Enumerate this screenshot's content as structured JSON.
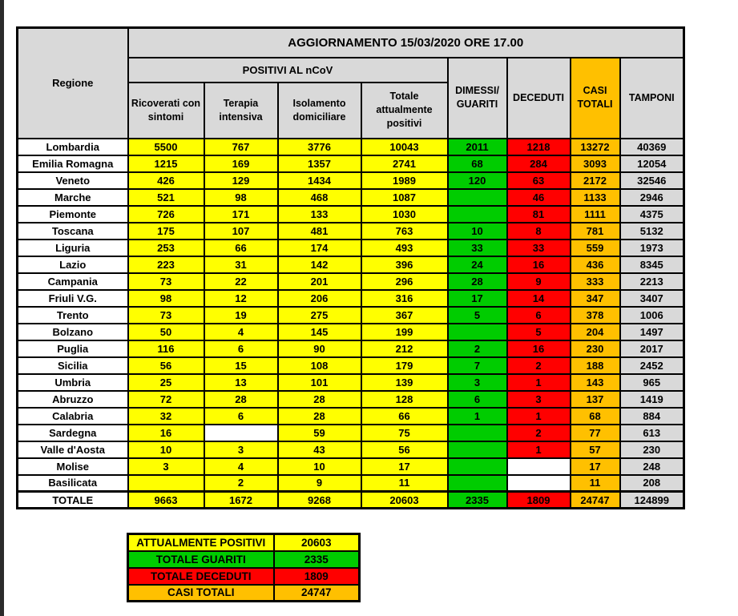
{
  "colors": {
    "positivi_yellow": "#ffff00",
    "guariti_green": "#00cc00",
    "deceduti_red": "#ff0000",
    "casi_totali_orange": "#ffc000",
    "header_gray": "#d9d9d9",
    "blank_white": "#ffffff",
    "edge_strip": "#2b2b2b"
  },
  "chart_data": {
    "type": "table",
    "title": "AGGIORNAMENTO 15/03/2020 ORE 17.00",
    "region_column_header": "Regione",
    "group_header": "POSITIVI AL nCoV",
    "columns": [
      "Ricoverati con sintomi",
      "Terapia intensiva",
      "Isolamento domiciliare",
      "Totale attualmente positivi",
      "DIMESSI/ GUARITI",
      "DECEDUTI",
      "CASI TOTALI",
      "TAMPONI"
    ],
    "column_backgrounds": [
      "yellow",
      "yellow",
      "yellow",
      "yellow",
      "green",
      "red",
      "orange",
      "gray"
    ],
    "rows": [
      {
        "region": "Lombardia",
        "values": [
          "5500",
          "767",
          "3776",
          "10043",
          "2011",
          "1218",
          "13272",
          "40369"
        ]
      },
      {
        "region": "Emilia Romagna",
        "values": [
          "1215",
          "169",
          "1357",
          "2741",
          "68",
          "284",
          "3093",
          "12054"
        ]
      },
      {
        "region": "Veneto",
        "values": [
          "426",
          "129",
          "1434",
          "1989",
          "120",
          "63",
          "2172",
          "32546"
        ]
      },
      {
        "region": "Marche",
        "values": [
          "521",
          "98",
          "468",
          "1087",
          "",
          "46",
          "1133",
          "2946"
        ]
      },
      {
        "region": "Piemonte",
        "values": [
          "726",
          "171",
          "133",
          "1030",
          "",
          "81",
          "1111",
          "4375"
        ]
      },
      {
        "region": "Toscana",
        "values": [
          "175",
          "107",
          "481",
          "763",
          "10",
          "8",
          "781",
          "5132"
        ]
      },
      {
        "region": "Liguria",
        "values": [
          "253",
          "66",
          "174",
          "493",
          "33",
          "33",
          "559",
          "1973"
        ]
      },
      {
        "region": "Lazio",
        "values": [
          "223",
          "31",
          "142",
          "396",
          "24",
          "16",
          "436",
          "8345"
        ]
      },
      {
        "region": "Campania",
        "values": [
          "73",
          "22",
          "201",
          "296",
          "28",
          "9",
          "333",
          "2213"
        ]
      },
      {
        "region": "Friuli V.G.",
        "values": [
          "98",
          "12",
          "206",
          "316",
          "17",
          "14",
          "347",
          "3407"
        ]
      },
      {
        "region": "Trento",
        "values": [
          "73",
          "19",
          "275",
          "367",
          "5",
          "6",
          "378",
          "1006"
        ]
      },
      {
        "region": "Bolzano",
        "values": [
          "50",
          "4",
          "145",
          "199",
          "",
          "5",
          "204",
          "1497"
        ]
      },
      {
        "region": "Puglia",
        "values": [
          "116",
          "6",
          "90",
          "212",
          "2",
          "16",
          "230",
          "2017"
        ]
      },
      {
        "region": "Sicilia",
        "values": [
          "56",
          "15",
          "108",
          "179",
          "7",
          "2",
          "188",
          "2452"
        ]
      },
      {
        "region": "Umbria",
        "values": [
          "25",
          "13",
          "101",
          "139",
          "3",
          "1",
          "143",
          "965"
        ]
      },
      {
        "region": "Abruzzo",
        "values": [
          "72",
          "28",
          "28",
          "128",
          "6",
          "3",
          "137",
          "1419"
        ]
      },
      {
        "region": "Calabria",
        "values": [
          "32",
          "6",
          "28",
          "66",
          "1",
          "1",
          "68",
          "884"
        ]
      },
      {
        "region": "Sardegna",
        "values": [
          "16",
          "",
          "59",
          "75",
          "",
          "2",
          "77",
          "613"
        ],
        "white_cells": [
          1
        ]
      },
      {
        "region": "Valle d'Aosta",
        "values": [
          "10",
          "3",
          "43",
          "56",
          "",
          "1",
          "57",
          "230"
        ]
      },
      {
        "region": "Molise",
        "values": [
          "3",
          "4",
          "10",
          "17",
          "",
          "",
          "17",
          "248"
        ],
        "white_cells": [
          5
        ]
      },
      {
        "region": "Basilicata",
        "values": [
          "",
          "2",
          "9",
          "11",
          "",
          "",
          "11",
          "208"
        ],
        "white_cells": [
          5
        ]
      },
      {
        "region": "TOTALE",
        "values": [
          "9663",
          "1672",
          "9268",
          "20603",
          "2335",
          "1809",
          "24747",
          "124899"
        ],
        "is_total": true
      }
    ],
    "summary": {
      "rows": [
        {
          "label": "ATTUALMENTE POSITIVI",
          "value": "20603",
          "bg": "yellow"
        },
        {
          "label": "TOTALE GUARITI",
          "value": "2335",
          "bg": "green"
        },
        {
          "label": "TOTALE DECEDUTI",
          "value": "1809",
          "bg": "red"
        },
        {
          "label": "CASI TOTALI",
          "value": "24747",
          "bg": "orange"
        }
      ]
    }
  }
}
